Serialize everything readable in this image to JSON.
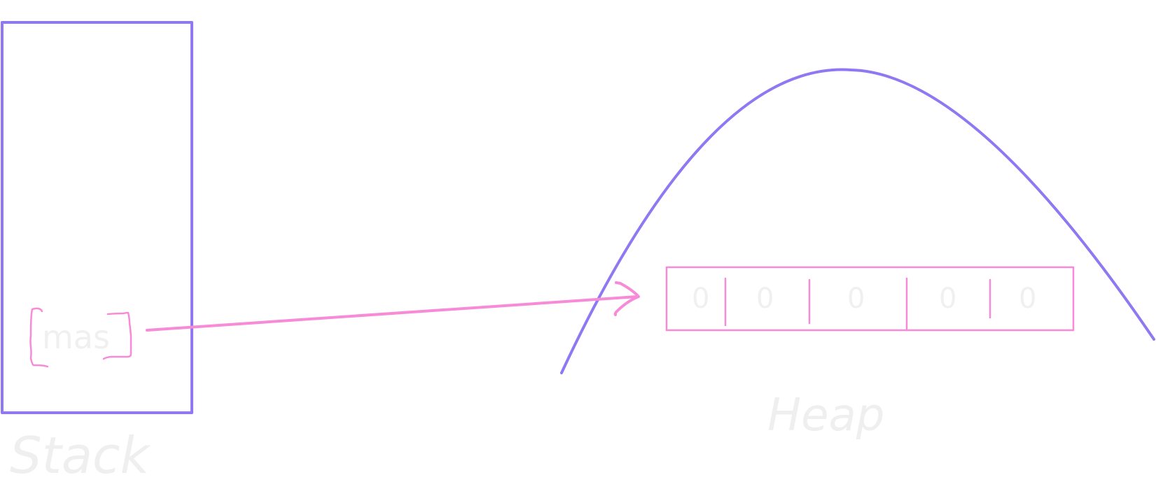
{
  "diagram": {
    "stack": {
      "label": "Stack",
      "variable": "mas"
    },
    "heap": {
      "label": "Heap",
      "cells": [
        "0",
        "0",
        "0",
        "0",
        "0"
      ]
    },
    "colors": {
      "memory_region": "#8f78f2",
      "array": "#f78bd8",
      "faint_text": "#efefef"
    }
  }
}
